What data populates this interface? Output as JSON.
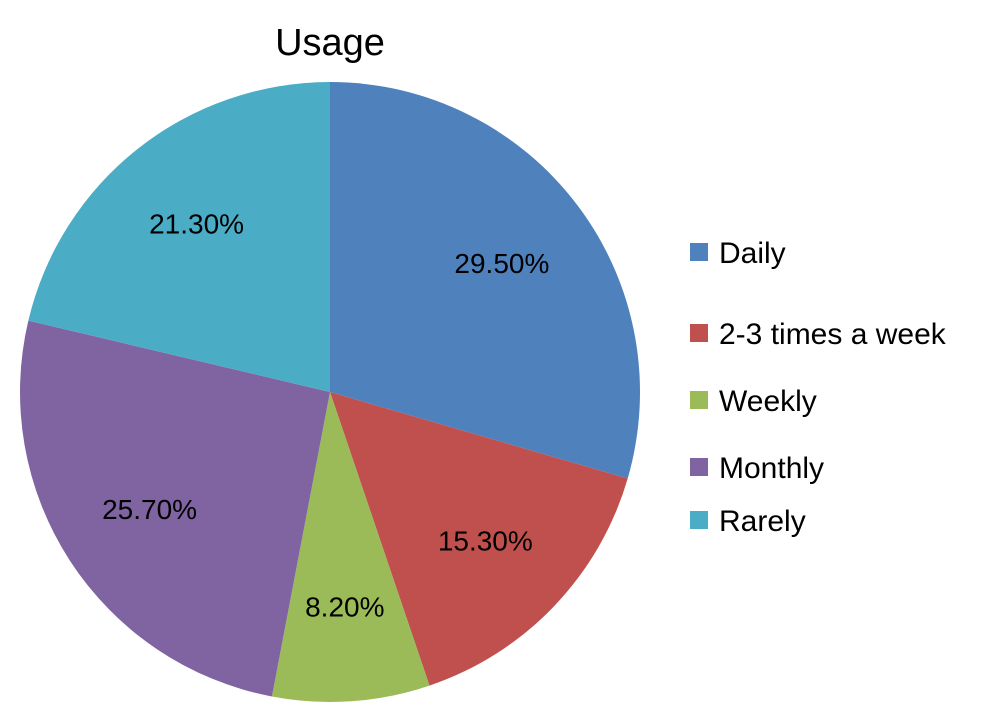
{
  "chart_data": {
    "type": "pie",
    "title": "Usage",
    "start_angle_deg": 0,
    "direction": "clockwise",
    "legend_position": "right",
    "slices": [
      {
        "label": "Daily",
        "value": 29.5,
        "display": "29.50%",
        "color": "#4F81BD"
      },
      {
        "label": "2-3 times a week",
        "value": 15.3,
        "display": "15.30%",
        "color": "#C0504D"
      },
      {
        "label": "Weekly",
        "value": 8.2,
        "display": "8.20%",
        "color": "#9BBB59"
      },
      {
        "label": "Monthly",
        "value": 25.7,
        "display": "25.70%",
        "color": "#8064A2"
      },
      {
        "label": "Rarely",
        "value": 21.3,
        "display": "21.30%",
        "color": "#4BACC6"
      }
    ]
  }
}
